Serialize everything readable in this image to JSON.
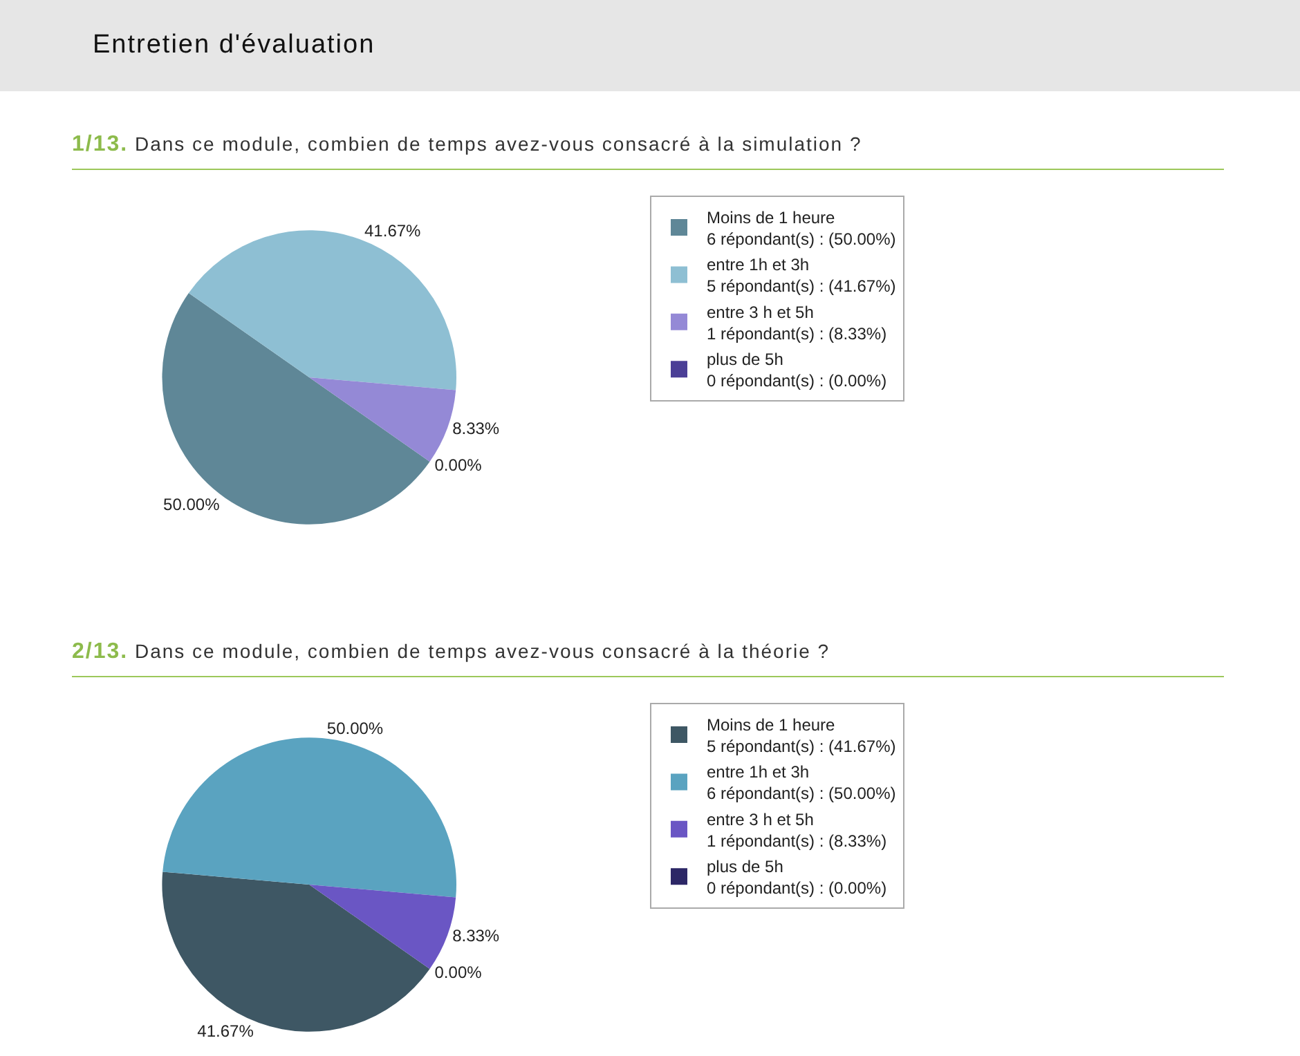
{
  "chart_data": [
    {
      "type": "pie",
      "title": "1/13. Dans ce module, combien de temps avez-vous consacré à la simulation ?",
      "annotations": [
        "Entretien d'évaluation"
      ],
      "categories": [
        "Moins de 1 heure\n6 répondant(s) : (50.00%)",
        "entre 1h et 3h\n5 répondant(s) : (41.67%)",
        "entre 3 h et 5h\n1 répondant(s) : (8.33%)",
        "plus de 5h\n0 répondant(s) : (0.00%)"
      ],
      "values": [
        50,
        41.67,
        8.33,
        0
      ],
      "value_labels": [
        "50.00%",
        "41.67%",
        "8.33%",
        "0.00%"
      ],
      "colors": [
        "#5f8797",
        "#8ebfd3",
        "#9489d6",
        "#4b3f96"
      ],
      "legend": "right"
    },
    {
      "type": "pie",
      "title": "2/13. Dans ce module, combien de temps avez-vous consacré à la théorie ?",
      "categories": [
        "Moins de 1 heure\n5 répondant(s) : (41.67%)",
        "entre 1h et 3h\n6 répondant(s) : (50.00%)",
        "entre 3 h et 5h\n1 répondant(s) : (8.33%)",
        "plus de 5h\n0 répondant(s) : (0.00%)"
      ],
      "values": [
        41.67,
        50,
        8.33,
        0
      ],
      "value_labels": [
        "41.67%",
        "50.00%",
        "8.33%",
        "0.00%"
      ],
      "colors": [
        "#3e5764",
        "#5aa3c0",
        "#6a56c4",
        "#2c2766"
      ],
      "legend": "right"
    }
  ]
}
